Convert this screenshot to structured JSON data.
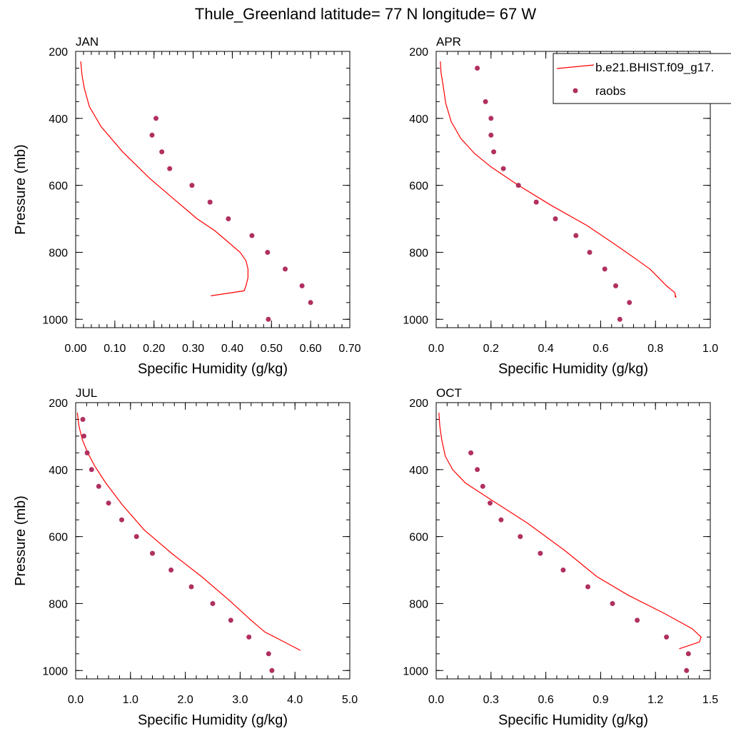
{
  "title": "Thule_Greenland  latitude= 77 N longitude= 67 W",
  "colors": {
    "model": "#ff0000",
    "obs": "#b03060"
  },
  "legend": {
    "placement": "top-right",
    "entries": [
      {
        "label": "b.e21.BHIST.f09_g17.",
        "kind": "line"
      },
      {
        "label": "raobs",
        "kind": "marker"
      }
    ]
  },
  "chart_data": [
    {
      "type": "line",
      "panel": "JAN",
      "xlabel": "Specific Humidity (g/kg)",
      "ylabel": "Pressure (mb)",
      "xlim": [
        0,
        0.7
      ],
      "xticks": [
        0,
        0.1,
        0.2,
        0.3,
        0.4,
        0.5,
        0.6,
        0.7
      ],
      "xtick_labels": [
        "0.00",
        "0.10",
        "0.20",
        "0.30",
        "0.40",
        "0.50",
        "0.60",
        "0.70"
      ],
      "xminor": 0.02,
      "ylim": [
        200,
        1025
      ],
      "yticks": [
        200,
        400,
        600,
        800,
        1000
      ],
      "ytick_labels": [
        "200",
        "400",
        "600",
        "800",
        "1000"
      ],
      "yminor": 50,
      "series": [
        {
          "kind": "line",
          "x": [
            0.013,
            0.016,
            0.022,
            0.035,
            0.065,
            0.12,
            0.19,
            0.25,
            0.31,
            0.355,
            0.385,
            0.42,
            0.435,
            0.44,
            0.44,
            0.435,
            0.43,
            0.345
          ],
          "y": [
            230,
            270,
            310,
            365,
            425,
            500,
            580,
            640,
            700,
            735,
            765,
            800,
            825,
            850,
            875,
            900,
            915,
            930
          ]
        },
        {
          "kind": "scatter",
          "x": [
            0.205,
            0.195,
            0.22,
            0.24,
            0.297,
            0.343,
            0.39,
            0.45,
            0.49,
            0.535,
            0.578,
            0.6,
            0.492
          ],
          "y": [
            400,
            450,
            500,
            550,
            600,
            650,
            700,
            750,
            800,
            850,
            900,
            950,
            1000
          ]
        }
      ]
    },
    {
      "type": "line",
      "panel": "APR",
      "xlabel": "Specific Humidity (g/kg)",
      "ylabel": "",
      "xlim": [
        0,
        1.0
      ],
      "xticks": [
        0,
        0.2,
        0.4,
        0.6,
        0.8,
        1.0
      ],
      "xtick_labels": [
        "0.0",
        "0.2",
        "0.4",
        "0.6",
        "0.8",
        "1.0"
      ],
      "xminor": 0.04,
      "ylim": [
        200,
        1025
      ],
      "yticks": [
        200,
        400,
        600,
        800,
        1000
      ],
      "ytick_labels": [
        "200",
        "400",
        "600",
        "800",
        "1000"
      ],
      "yminor": 50,
      "series": [
        {
          "kind": "line",
          "x": [
            0.015,
            0.018,
            0.025,
            0.035,
            0.055,
            0.09,
            0.14,
            0.2,
            0.3,
            0.42,
            0.55,
            0.65,
            0.72,
            0.78,
            0.81,
            0.84,
            0.87,
            0.875,
            0.87
          ],
          "y": [
            230,
            265,
            300,
            355,
            410,
            460,
            505,
            545,
            600,
            660,
            720,
            775,
            815,
            850,
            875,
            900,
            920,
            935,
            930
          ]
        },
        {
          "kind": "scatter",
          "x": [
            0.15,
            0.18,
            0.2,
            0.2,
            0.21,
            0.245,
            0.3,
            0.365,
            0.435,
            0.51,
            0.56,
            0.615,
            0.655,
            0.705,
            0.67
          ],
          "y": [
            250,
            350,
            400,
            450,
            500,
            550,
            600,
            650,
            700,
            750,
            800,
            850,
            900,
            950,
            1000
          ]
        }
      ]
    },
    {
      "type": "line",
      "panel": "JUL",
      "xlabel": "Specific Humidity (g/kg)",
      "ylabel": "Pressure (mb)",
      "xlim": [
        0,
        5.0
      ],
      "xticks": [
        0,
        1,
        2,
        3,
        4,
        5
      ],
      "xtick_labels": [
        "0.0",
        "1.0",
        "2.0",
        "3.0",
        "4.0",
        "5.0"
      ],
      "xminor": 0.2,
      "ylim": [
        200,
        1025
      ],
      "yticks": [
        200,
        400,
        600,
        800,
        1000
      ],
      "ytick_labels": [
        "200",
        "400",
        "600",
        "800",
        "1000"
      ],
      "yminor": 50,
      "series": [
        {
          "kind": "line",
          "x": [
            0.03,
            0.06,
            0.12,
            0.22,
            0.35,
            0.55,
            0.85,
            1.25,
            1.75,
            2.3,
            2.8,
            3.2,
            3.45,
            3.75,
            4.1
          ],
          "y": [
            230,
            270,
            310,
            350,
            390,
            440,
            505,
            580,
            650,
            720,
            790,
            850,
            885,
            910,
            940
          ]
        },
        {
          "kind": "scatter",
          "x": [
            0.13,
            0.15,
            0.21,
            0.29,
            0.42,
            0.6,
            0.84,
            1.11,
            1.4,
            1.74,
            2.11,
            2.5,
            2.83,
            3.16,
            3.52,
            3.58
          ],
          "y": [
            250,
            300,
            350,
            400,
            450,
            500,
            550,
            600,
            650,
            700,
            750,
            800,
            850,
            900,
            950,
            1000
          ]
        }
      ]
    },
    {
      "type": "line",
      "panel": "OCT",
      "xlabel": "Specific Humidity (g/kg)",
      "ylabel": "",
      "xlim": [
        0,
        1.5
      ],
      "xticks": [
        0,
        0.3,
        0.6,
        0.9,
        1.2,
        1.5
      ],
      "xtick_labels": [
        "0.0",
        "0.3",
        "0.6",
        "0.9",
        "1.2",
        "1.5"
      ],
      "xminor": 0.06,
      "ylim": [
        200,
        1025
      ],
      "yticks": [
        200,
        400,
        600,
        800,
        1000
      ],
      "ytick_labels": [
        "200",
        "400",
        "600",
        "800",
        "1000"
      ],
      "yminor": 50,
      "series": [
        {
          "kind": "line",
          "x": [
            0.015,
            0.02,
            0.03,
            0.05,
            0.09,
            0.16,
            0.3,
            0.5,
            0.7,
            0.88,
            1.05,
            1.25,
            1.4,
            1.45,
            1.44,
            1.33
          ],
          "y": [
            230,
            270,
            310,
            360,
            400,
            440,
            490,
            560,
            640,
            720,
            775,
            830,
            875,
            900,
            915,
            935
          ]
        },
        {
          "kind": "scatter",
          "x": [
            0.19,
            0.225,
            0.255,
            0.295,
            0.355,
            0.46,
            0.57,
            0.695,
            0.83,
            0.965,
            1.1,
            1.26,
            1.38,
            1.37
          ],
          "y": [
            350,
            400,
            450,
            500,
            550,
            600,
            650,
            700,
            750,
            800,
            850,
            900,
            950,
            1000
          ]
        }
      ]
    }
  ]
}
